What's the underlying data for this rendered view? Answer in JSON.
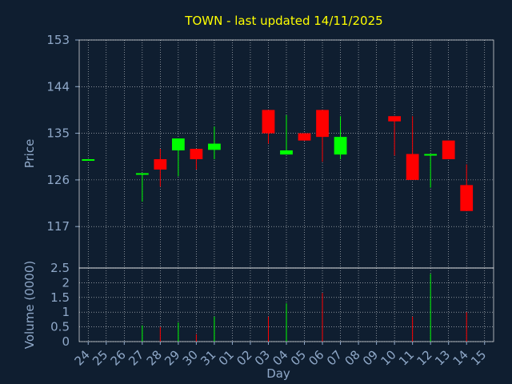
{
  "chart_data": {
    "type": "candlestick",
    "title": "TOWN - last updated 14/11/2025",
    "xlabel": "Day",
    "ylabel_price": "Price",
    "ylabel_volume": "Volume (0000)",
    "x_ticks": [
      "24",
      "25",
      "26",
      "27",
      "28",
      "29",
      "30",
      "31",
      "01",
      "02",
      "03",
      "04",
      "05",
      "06",
      "07",
      "08",
      "09",
      "10",
      "11",
      "12",
      "13",
      "14",
      "15"
    ],
    "price_ticks": [
      "153",
      "144",
      "135",
      "126",
      "117"
    ],
    "price_ylim": [
      109,
      153
    ],
    "volume_ticks": [
      "2.5",
      "2",
      "1.5",
      "1",
      "0.5",
      "0"
    ],
    "volume_ylim": [
      0,
      2.5
    ],
    "grid": true,
    "colors": {
      "background": "#0f1e30",
      "text": "#8fa8c8",
      "title": "#ffff00",
      "up": "#00ff00",
      "down": "#ff0000",
      "grid": "#ffffff"
    },
    "candles": [
      {
        "day": "24",
        "open": 130.0,
        "high": 130.0,
        "low": 130.0,
        "close": 130.0,
        "volume": 0.0
      },
      {
        "day": "27",
        "open": 127.0,
        "high": 127.2,
        "low": 121.8,
        "close": 127.3,
        "volume": 0.55
      },
      {
        "day": "28",
        "open": 130.0,
        "high": 132.0,
        "low": 124.7,
        "close": 128.0,
        "volume": 0.5
      },
      {
        "day": "29",
        "open": 131.7,
        "high": 134.0,
        "low": 126.7,
        "close": 134.0,
        "volume": 0.65
      },
      {
        "day": "30",
        "open": 132.0,
        "high": 132.0,
        "low": 128.0,
        "close": 130.0,
        "volume": 0.25
      },
      {
        "day": "31",
        "open": 131.8,
        "high": 136.3,
        "low": 130.0,
        "close": 133.0,
        "volume": 0.85
      },
      {
        "day": "03",
        "open": 139.5,
        "high": 139.5,
        "low": 133.0,
        "close": 135.0,
        "volume": 0.85
      },
      {
        "day": "04",
        "open": 130.9,
        "high": 138.5,
        "low": 130.9,
        "close": 131.7,
        "volume": 1.3
      },
      {
        "day": "05",
        "open": 135.0,
        "high": 135.0,
        "low": 133.6,
        "close": 133.6,
        "volume": 0.0
      },
      {
        "day": "06",
        "open": 139.5,
        "high": 139.5,
        "low": 129.5,
        "close": 134.3,
        "volume": 1.65
      },
      {
        "day": "07",
        "open": 130.9,
        "high": 138.3,
        "low": 130.0,
        "close": 134.3,
        "volume": 0.0
      },
      {
        "day": "10",
        "open": 138.3,
        "high": 138.3,
        "low": 130.7,
        "close": 137.3,
        "volume": 0.0
      },
      {
        "day": "11",
        "open": 131.0,
        "high": 138.3,
        "low": 126.0,
        "close": 126.0,
        "volume": 0.85
      },
      {
        "day": "12",
        "open": 130.8,
        "high": 130.9,
        "low": 124.5,
        "close": 131.0,
        "volume": 2.3
      },
      {
        "day": "13",
        "open": 133.6,
        "high": 133.6,
        "low": 130.0,
        "close": 130.0,
        "volume": 0.0
      },
      {
        "day": "14",
        "open": 125.0,
        "high": 129.0,
        "low": 120.0,
        "close": 120.0,
        "volume": 1.0
      }
    ]
  }
}
